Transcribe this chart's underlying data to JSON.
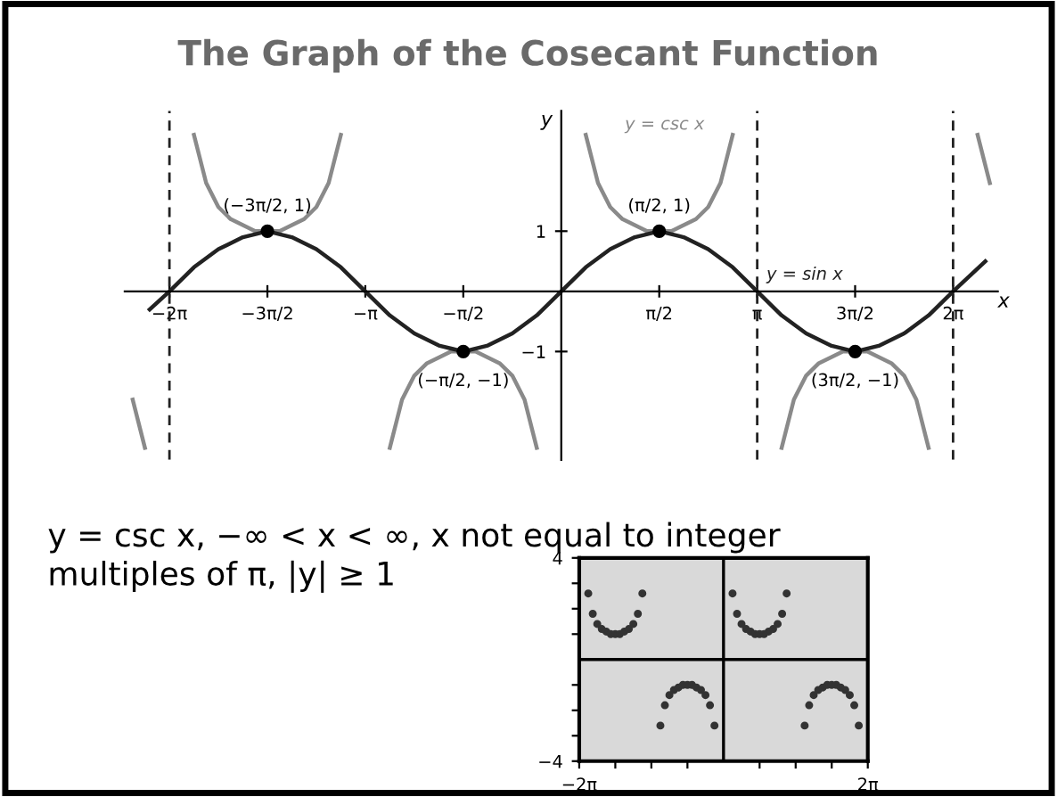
{
  "chart_data": [
    {
      "type": "line",
      "title": "The Graph of the Cosecant Function",
      "xlabel": "x",
      "ylabel": "y",
      "xlim": [
        -7.0,
        7.0
      ],
      "ylim": [
        -2.8,
        3.0
      ],
      "xticks": [
        {
          "value": -6.283,
          "label": "−2π"
        },
        {
          "value": -4.712,
          "label": "−3π/2"
        },
        {
          "value": -3.142,
          "label": "−π"
        },
        {
          "value": -1.571,
          "label": "−π/2"
        },
        {
          "value": 1.571,
          "label": "π/2"
        },
        {
          "value": 3.142,
          "label": "π"
        },
        {
          "value": 4.712,
          "label": "3π/2"
        },
        {
          "value": 6.283,
          "label": "2π"
        }
      ],
      "yticks": [
        {
          "value": 1,
          "label": "1"
        },
        {
          "value": -1,
          "label": "−1"
        }
      ],
      "grid": false,
      "legend": false,
      "series": [
        {
          "name": "y = csc x",
          "color": "#8a8a8a",
          "x": [
            -6.872,
            -6.676,
            -6.283,
            -5.89,
            -5.694,
            -5.498,
            -5.301,
            -5.105,
            -4.909,
            -4.712,
            -4.516,
            -4.32,
            -4.123,
            -3.927,
            -3.73,
            -3.534,
            -3.142,
            -2.749,
            -2.553,
            -2.356,
            -2.16,
            -1.963,
            -1.767,
            -1.571,
            -1.374,
            -1.178,
            -0.982,
            -0.785,
            -0.589,
            -0.393,
            0,
            0.393,
            0.589,
            0.785,
            0.982,
            1.178,
            1.374,
            1.571,
            1.767,
            1.963,
            2.16,
            2.356,
            2.553,
            2.749,
            3.142,
            3.534,
            3.73,
            3.927,
            4.123,
            4.32,
            4.516,
            4.712,
            4.909,
            5.105,
            5.301,
            5.498,
            5.694,
            5.89,
            6.283,
            6.676,
            6.872
          ],
          "values": [
            -1.8,
            -2.6,
            null,
            2.6,
            1.8,
            1.4,
            1.2,
            1.1,
            1.0,
            1,
            1.0,
            1.1,
            1.2,
            1.4,
            1.8,
            2.6,
            null,
            -2.6,
            -1.8,
            -1.4,
            -1.2,
            -1.1,
            -1.0,
            -1,
            -1.0,
            -1.1,
            -1.2,
            -1.4,
            -1.8,
            -2.6,
            null,
            2.6,
            1.8,
            1.4,
            1.2,
            1.1,
            1.0,
            1,
            1.0,
            1.1,
            1.2,
            1.4,
            1.8,
            2.6,
            null,
            -2.6,
            -1.8,
            -1.4,
            -1.2,
            -1.1,
            -1.0,
            -1,
            -1.0,
            -1.1,
            -1.2,
            -1.4,
            -1.8,
            -2.6,
            null,
            2.6,
            1.8
          ]
        },
        {
          "name": "y = sin x",
          "color": "#222222",
          "x": [
            -6.6,
            -6.283,
            -5.89,
            -5.498,
            -5.105,
            -4.712,
            -4.32,
            -3.927,
            -3.534,
            -3.142,
            -2.749,
            -2.356,
            -1.963,
            -1.571,
            -1.178,
            -0.785,
            -0.393,
            0,
            0.393,
            0.785,
            1.178,
            1.571,
            1.963,
            2.356,
            2.749,
            3.142,
            3.534,
            3.927,
            4.32,
            4.712,
            5.105,
            5.498,
            5.89,
            6.283,
            6.8
          ],
          "values": [
            -0.3,
            0,
            0.4,
            0.7,
            0.9,
            1,
            0.9,
            0.7,
            0.4,
            0,
            -0.4,
            -0.7,
            -0.9,
            -1,
            -0.9,
            -0.7,
            -0.4,
            0,
            0.4,
            0.7,
            0.9,
            1,
            0.9,
            0.7,
            0.4,
            0,
            -0.4,
            -0.7,
            -0.9,
            -1,
            -0.9,
            -0.7,
            -0.4,
            0,
            0.5
          ]
        }
      ],
      "ref_lines": [
        {
          "axis": "x",
          "value": -6.283,
          "color": "#222222",
          "line_style": "dashed"
        },
        {
          "axis": "x",
          "value": 3.142,
          "color": "#222222",
          "line_style": "dashed"
        },
        {
          "axis": "x",
          "value": 6.283,
          "color": "#222222",
          "line_style": "dashed"
        }
      ],
      "annotations": [
        {
          "text": "(−3π/2, 1)",
          "x": -4.712,
          "y": 1
        },
        {
          "text": "(π/2, 1)",
          "x": 1.571,
          "y": 1
        },
        {
          "text": "(−π/2, −1)",
          "x": -1.571,
          "y": -1
        },
        {
          "text": "(3π/2, −1)",
          "x": 4.712,
          "y": -1
        },
        "y = csc x, −∞ < x < ∞, x not equal to integer\nmultiples of π, |y| ≥ 1"
      ]
    },
    {
      "type": "scatter",
      "xlim": [
        -6.283,
        6.283
      ],
      "ylim": [
        -4,
        4
      ],
      "xticks": [
        {
          "value": -6.283,
          "label": "−2π"
        },
        {
          "value": -4.712,
          "label": null
        },
        {
          "value": -3.142,
          "label": null
        },
        {
          "value": -1.571,
          "label": null
        },
        {
          "value": 1.571,
          "label": null
        },
        {
          "value": 3.142,
          "label": null
        },
        {
          "value": 4.712,
          "label": null
        },
        {
          "value": 6.283,
          "label": "2π"
        }
      ],
      "yticks": [
        {
          "value": -4,
          "label": "−4"
        },
        {
          "value": -3,
          "label": null
        },
        {
          "value": -2,
          "label": null
        },
        {
          "value": -1,
          "label": null
        },
        {
          "value": 1,
          "label": null
        },
        {
          "value": 2,
          "label": null
        },
        {
          "value": 3,
          "label": null
        },
        {
          "value": 4,
          "label": "4"
        }
      ],
      "grid": false,
      "legend": false,
      "marker": "circle",
      "series": [
        {
          "color": "#333333",
          "x": [
            -5.89,
            -5.694,
            -5.498,
            -5.301,
            -5.105,
            -4.909,
            -4.712,
            -4.516,
            -4.32,
            -4.123,
            -3.927,
            -3.73,
            -3.534,
            -2.749,
            -2.553,
            -2.356,
            -2.16,
            -1.963,
            -1.767,
            -1.571,
            -1.374,
            -1.178,
            -0.982,
            -0.785,
            -0.589,
            -0.393,
            0.393,
            0.589,
            0.785,
            0.982,
            1.178,
            1.374,
            1.571,
            1.767,
            1.963,
            2.16,
            2.356,
            2.553,
            2.749,
            3.534,
            3.73,
            3.927,
            4.123,
            4.32,
            4.516,
            4.712,
            4.909,
            5.105,
            5.301,
            5.498,
            5.694,
            5.89
          ],
          "values": [
            2.6,
            1.8,
            1.4,
            1.2,
            1.1,
            1.0,
            1,
            1.0,
            1.1,
            1.2,
            1.4,
            1.8,
            2.6,
            -2.6,
            -1.8,
            -1.4,
            -1.2,
            -1.1,
            -1.0,
            -1,
            -1.0,
            -1.1,
            -1.2,
            -1.4,
            -1.8,
            -2.6,
            2.6,
            1.8,
            1.4,
            1.2,
            1.1,
            1.0,
            1,
            1.0,
            1.1,
            1.2,
            1.4,
            1.8,
            2.6,
            -2.6,
            -1.8,
            -1.4,
            -1.2,
            -1.1,
            -1.0,
            -1,
            -1.0,
            -1.1,
            -1.2,
            -1.4,
            -1.8,
            -2.6
          ]
        }
      ]
    }
  ]
}
